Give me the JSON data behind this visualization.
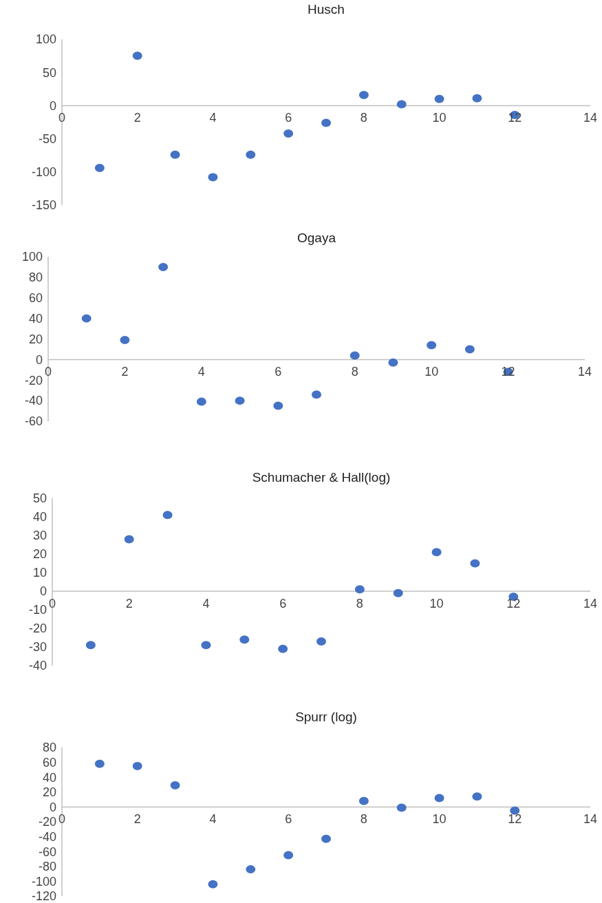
{
  "chart_data": [
    {
      "type": "scatter",
      "title": "Husch",
      "x": [
        1,
        2,
        3,
        4,
        5,
        6,
        7,
        8,
        9,
        10,
        11,
        12
      ],
      "series": [
        {
          "color": "#4472c4",
          "values": [
            -94,
            75,
            -74,
            -108,
            -74,
            -42,
            -26,
            16,
            2,
            10,
            11,
            -14
          ]
        }
      ],
      "xlim": [
        0,
        14
      ],
      "xticks": [
        0,
        2,
        4,
        6,
        8,
        10,
        12,
        14
      ],
      "ylim": [
        -150,
        100
      ],
      "yticks": [
        -150,
        -100,
        -50,
        0,
        50,
        100
      ],
      "grid": false,
      "marker": "circle"
    },
    {
      "type": "scatter",
      "title": "Ogaya",
      "x": [
        1,
        2,
        3,
        4,
        5,
        6,
        7,
        8,
        9,
        10,
        11,
        12
      ],
      "series": [
        {
          "color": "#4472c4",
          "values": [
            40,
            19,
            90,
            -41,
            -40,
            -45,
            -34,
            4,
            -3,
            14,
            10,
            -12
          ]
        }
      ],
      "xlim": [
        0,
        14
      ],
      "xticks": [
        0,
        2,
        4,
        6,
        8,
        10,
        12,
        14
      ],
      "ylim": [
        -60,
        100
      ],
      "yticks": [
        -60,
        -40,
        -20,
        0,
        20,
        40,
        60,
        80,
        100
      ],
      "grid": false,
      "marker": "circle"
    },
    {
      "type": "scatter",
      "title": "Schumacher & Hall(log)",
      "x": [
        1,
        2,
        3,
        4,
        5,
        6,
        7,
        8,
        9,
        10,
        11,
        12
      ],
      "series": [
        {
          "color": "#4472c4",
          "values": [
            -29,
            28,
            41,
            -29,
            -26,
            -31,
            -27,
            1,
            -1,
            21,
            15,
            -3
          ]
        }
      ],
      "xlim": [
        0,
        14
      ],
      "xticks": [
        0,
        2,
        4,
        6,
        8,
        10,
        12,
        14
      ],
      "ylim": [
        -40,
        50
      ],
      "yticks": [
        -40,
        -30,
        -20,
        -10,
        0,
        10,
        20,
        30,
        40,
        50
      ],
      "grid": false,
      "marker": "circle"
    },
    {
      "type": "scatter",
      "title": "Spurr (log)",
      "x": [
        1,
        2,
        3,
        4,
        5,
        6,
        7,
        8,
        9,
        10,
        11,
        12
      ],
      "series": [
        {
          "color": "#4472c4",
          "values": [
            58,
            55,
            29,
            -104,
            -84,
            -65,
            -43,
            8,
            -1,
            12,
            14,
            -5
          ]
        }
      ],
      "xlim": [
        0,
        14
      ],
      "xticks": [
        0,
        2,
        4,
        6,
        8,
        10,
        12,
        14
      ],
      "ylim": [
        -120,
        80
      ],
      "yticks": [
        -120,
        -100,
        -80,
        -60,
        -40,
        -20,
        0,
        20,
        40,
        60,
        80
      ],
      "grid": false,
      "marker": "circle"
    }
  ]
}
